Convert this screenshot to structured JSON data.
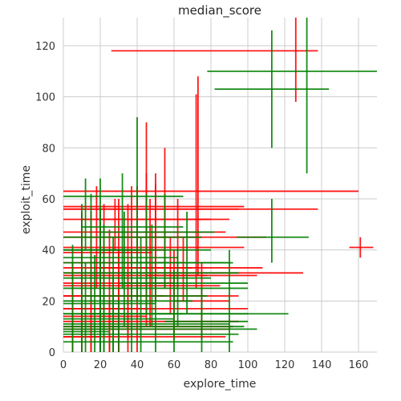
{
  "chart_data": {
    "type": "scatter",
    "title": "median_score",
    "xlabel": "explore_time",
    "ylabel": "exploit_time",
    "xlim": [
      0,
      170
    ],
    "ylim": [
      0,
      131
    ],
    "xticks": [
      0,
      20,
      40,
      60,
      80,
      100,
      120,
      140,
      160
    ],
    "yticks": [
      0,
      20,
      40,
      60,
      80,
      100,
      120
    ],
    "grid": true,
    "legend": "none",
    "series": [
      {
        "color": "#ff0000",
        "points": [
          {
            "x": 126,
            "y": 118,
            "xerr": [
              26,
              138
            ],
            "yerr": [
              98,
              131
            ]
          },
          {
            "x": 161,
            "y": 41,
            "xerr": [
              155,
              168
            ],
            "yerr": [
              37,
              45
            ]
          },
          {
            "x": 73,
            "y": 63,
            "xerr": [
              0,
              160
            ],
            "yerr": [
              30,
              108
            ]
          },
          {
            "x": 72,
            "y": 56,
            "xerr": [
              0,
              138
            ],
            "yerr": [
              25,
              101
            ]
          },
          {
            "x": 50,
            "y": 45,
            "xerr": [
              0,
              110
            ],
            "yerr": [
              20,
              66
            ]
          },
          {
            "x": 45,
            "y": 41,
            "xerr": [
              0,
              98
            ],
            "yerr": [
              15,
              70
            ]
          },
          {
            "x": 40,
            "y": 56,
            "xerr": [
              0,
              95
            ],
            "yerr": [
              35,
              65
            ]
          },
          {
            "x": 45,
            "y": 47,
            "xerr": [
              0,
              88
            ],
            "yerr": [
              10,
              90
            ]
          },
          {
            "x": 35,
            "y": 30,
            "xerr": [
              0,
              78
            ],
            "yerr": [
              5,
              58
            ]
          },
          {
            "x": 30,
            "y": 27,
            "xerr": [
              0,
              60
            ],
            "yerr": [
              0,
              60
            ]
          },
          {
            "x": 25,
            "y": 22,
            "xerr": [
              0,
              55
            ],
            "yerr": [
              0,
              48
            ]
          },
          {
            "x": 20,
            "y": 17,
            "xerr": [
              0,
              50
            ],
            "yerr": [
              0,
              40
            ]
          },
          {
            "x": 15,
            "y": 14,
            "xerr": [
              0,
              45
            ],
            "yerr": [
              0,
              35
            ]
          },
          {
            "x": 30,
            "y": 17,
            "xerr": [
              0,
              100
            ],
            "yerr": [
              0,
              40
            ]
          },
          {
            "x": 35,
            "y": 12,
            "xerr": [
              0,
              95
            ],
            "yerr": [
              0,
              35
            ]
          },
          {
            "x": 40,
            "y": 10,
            "xerr": [
              0,
              92
            ],
            "yerr": [
              0,
              28
            ]
          },
          {
            "x": 20,
            "y": 9,
            "xerr": [
              0,
              90
            ],
            "yerr": [
              0,
              25
            ]
          },
          {
            "x": 25,
            "y": 6,
            "xerr": [
              0,
              88
            ],
            "yerr": [
              0,
              20
            ]
          },
          {
            "x": 10,
            "y": 22,
            "xerr": [
              0,
              40
            ],
            "yerr": [
              0,
              55
            ]
          },
          {
            "x": 22,
            "y": 33,
            "xerr": [
              0,
              70
            ],
            "yerr": [
              10,
              58
            ]
          },
          {
            "x": 28,
            "y": 52,
            "xerr": [
              0,
              80
            ],
            "yerr": [
              40,
              60
            ]
          },
          {
            "x": 50,
            "y": 57,
            "xerr": [
              0,
              98
            ],
            "yerr": [
              30,
              70
            ]
          },
          {
            "x": 55,
            "y": 52,
            "xerr": [
              10,
              90
            ],
            "yerr": [
              25,
              80
            ]
          },
          {
            "x": 47,
            "y": 35,
            "xerr": [
              0,
              64
            ],
            "yerr": [
              10,
              60
            ]
          },
          {
            "x": 58,
            "y": 33,
            "xerr": [
              20,
              108
            ],
            "yerr": [
              15,
              45
            ]
          },
          {
            "x": 65,
            "y": 30,
            "xerr": [
              45,
              105
            ],
            "yerr": [
              20,
              45
            ]
          },
          {
            "x": 60,
            "y": 22,
            "xerr": [
              25,
              95
            ],
            "yerr": [
              5,
              40
            ]
          },
          {
            "x": 20,
            "y": 26,
            "xerr": [
              0,
              85
            ],
            "yerr": [
              5,
              52
            ]
          },
          {
            "x": 15,
            "y": 31,
            "xerr": [
              0,
              130
            ],
            "yerr": [
              0,
              55
            ]
          },
          {
            "x": 5,
            "y": 6,
            "xerr": [
              0,
              20
            ],
            "yerr": [
              0,
              35
            ]
          },
          {
            "x": 18,
            "y": 39,
            "xerr": [
              0,
              48
            ],
            "yerr": [
              25,
              65
            ]
          },
          {
            "x": 37,
            "y": 40,
            "xerr": [
              20,
              55
            ],
            "yerr": [
              20,
              65
            ]
          },
          {
            "x": 62,
            "y": 45,
            "xerr": [
              30,
              75
            ],
            "yerr": [
              25,
              60
            ]
          },
          {
            "x": 75,
            "y": 20,
            "xerr": [
              60,
              90
            ],
            "yerr": [
              5,
              35
            ]
          }
        ]
      },
      {
        "color": "#008000",
        "points": [
          {
            "x": 132,
            "y": 110,
            "xerr": [
              78,
              170
            ],
            "yerr": [
              70,
              131
            ]
          },
          {
            "x": 113,
            "y": 103,
            "xerr": [
              82,
              144
            ],
            "yerr": [
              80,
              126
            ]
          },
          {
            "x": 113,
            "y": 45,
            "xerr": [
              94,
              133
            ],
            "yerr": [
              35,
              60
            ]
          },
          {
            "x": 40,
            "y": 45,
            "xerr": [
              0,
              75
            ],
            "yerr": [
              20,
              92
            ]
          },
          {
            "x": 12,
            "y": 61,
            "xerr": [
              0,
              65
            ],
            "yerr": [
              40,
              68
            ]
          },
          {
            "x": 32,
            "y": 49,
            "xerr": [
              10,
              65
            ],
            "yerr": [
              25,
              70
            ]
          },
          {
            "x": 45,
            "y": 40,
            "xerr": [
              0,
              80
            ],
            "yerr": [
              15,
              62
            ]
          },
          {
            "x": 33,
            "y": 35,
            "xerr": [
              0,
              92
            ],
            "yerr": [
              10,
              55
            ]
          },
          {
            "x": 20,
            "y": 31,
            "xerr": [
              0,
              95
            ],
            "yerr": [
              0,
              56
            ]
          },
          {
            "x": 22,
            "y": 25,
            "xerr": [
              0,
              75
            ],
            "yerr": [
              0,
              50
            ]
          },
          {
            "x": 27,
            "y": 20,
            "xerr": [
              0,
              70
            ],
            "yerr": [
              0,
              45
            ]
          },
          {
            "x": 17,
            "y": 15,
            "xerr": [
              0,
              65
            ],
            "yerr": [
              0,
              38
            ]
          },
          {
            "x": 12,
            "y": 13,
            "xerr": [
              0,
              60
            ],
            "yerr": [
              0,
              35
            ]
          },
          {
            "x": 37,
            "y": 15,
            "xerr": [
              0,
              100
            ],
            "yerr": [
              0,
              40
            ]
          },
          {
            "x": 27,
            "y": 11,
            "xerr": [
              0,
              90
            ],
            "yerr": [
              0,
              30
            ]
          },
          {
            "x": 22,
            "y": 7,
            "xerr": [
              0,
              95
            ],
            "yerr": [
              0,
              25
            ]
          },
          {
            "x": 20,
            "y": 9,
            "xerr": [
              0,
              105
            ],
            "yerr": [
              0,
              27
            ]
          },
          {
            "x": 30,
            "y": 4,
            "xerr": [
              0,
              92
            ],
            "yerr": [
              0,
              20
            ]
          },
          {
            "x": 10,
            "y": 19,
            "xerr": [
              0,
              50
            ],
            "yerr": [
              0,
              58
            ]
          },
          {
            "x": 20,
            "y": 37,
            "xerr": [
              0,
              62
            ],
            "yerr": [
              15,
              68
            ]
          },
          {
            "x": 55,
            "y": 47,
            "xerr": [
              20,
              82
            ],
            "yerr": [
              25,
              62
            ]
          },
          {
            "x": 48,
            "y": 29,
            "xerr": [
              0,
              80
            ],
            "yerr": [
              10,
              50
            ]
          },
          {
            "x": 62,
            "y": 27,
            "xerr": [
              30,
              100
            ],
            "yerr": [
              10,
              40
            ]
          },
          {
            "x": 60,
            "y": 15,
            "xerr": [
              15,
              122
            ],
            "yerr": [
              0,
              32
            ]
          },
          {
            "x": 50,
            "y": 10,
            "xerr": [
              0,
              98
            ],
            "yerr": [
              0,
              30
            ]
          },
          {
            "x": 5,
            "y": 8,
            "xerr": [
              0,
              25
            ],
            "yerr": [
              0,
              42
            ]
          },
          {
            "x": 15,
            "y": 40,
            "xerr": [
              0,
              40
            ],
            "yerr": [
              20,
              62
            ]
          },
          {
            "x": 67,
            "y": 35,
            "xerr": [
              40,
              90
            ],
            "yerr": [
              15,
              55
            ]
          },
          {
            "x": 90,
            "y": 25,
            "xerr": [
              75,
              100
            ],
            "yerr": [
              0,
              40
            ]
          },
          {
            "x": 75,
            "y": 12,
            "xerr": [
              55,
              100
            ],
            "yerr": [
              0,
              25
            ]
          },
          {
            "x": 42,
            "y": 22,
            "xerr": [
              10,
              78
            ],
            "yerr": [
              0,
              45
            ]
          }
        ]
      }
    ]
  }
}
